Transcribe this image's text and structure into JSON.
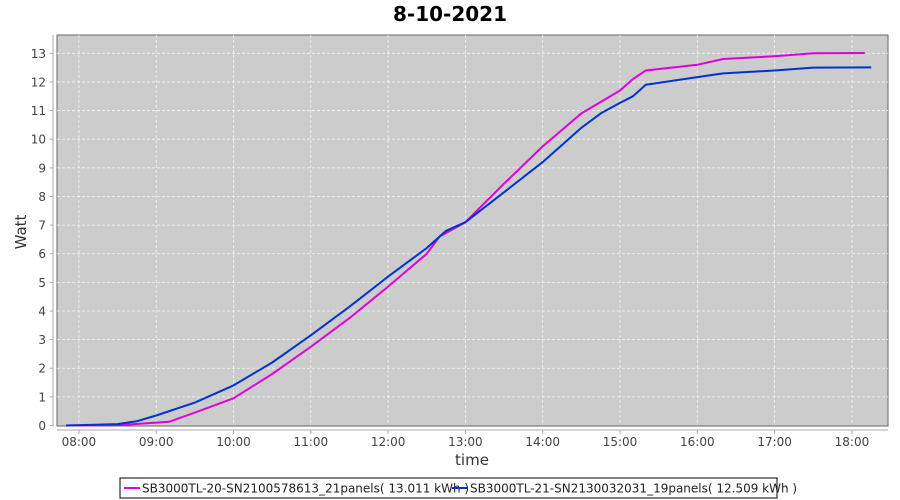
{
  "chart_data": {
    "type": "line",
    "title": "8-10-2021",
    "xlabel": "time",
    "ylabel": "Watt",
    "xlim": [
      "07:43",
      "18:28"
    ],
    "ylim": [
      0,
      13.64
    ],
    "x_ticks": [
      "08:00",
      "09:00",
      "10:00",
      "11:00",
      "12:00",
      "13:00",
      "14:00",
      "15:00",
      "16:00",
      "17:00",
      "18:00"
    ],
    "y_ticks": [
      0,
      1,
      2,
      3,
      4,
      5,
      6,
      7,
      8,
      9,
      10,
      11,
      12,
      13
    ],
    "grid": true,
    "legend_position": "bottom",
    "background": "#cccccc",
    "series": [
      {
        "name": "SB3000TL-20-SN2100578613_21panels( 13.011 kWh )",
        "color": "#dd00dd",
        "points": [
          [
            "07:50",
            0
          ],
          [
            "08:30",
            0.01
          ],
          [
            "09:00",
            0.1
          ],
          [
            "09:10",
            0.13
          ],
          [
            "09:30",
            0.45
          ],
          [
            "10:00",
            0.95
          ],
          [
            "10:30",
            1.8
          ],
          [
            "11:00",
            2.75
          ],
          [
            "11:30",
            3.75
          ],
          [
            "12:00",
            4.85
          ],
          [
            "12:30",
            6.0
          ],
          [
            "12:40",
            6.6
          ],
          [
            "12:50",
            6.85
          ],
          [
            "13:00",
            7.1
          ],
          [
            "13:30",
            8.45
          ],
          [
            "14:00",
            9.75
          ],
          [
            "14:30",
            10.9
          ],
          [
            "14:45",
            11.3
          ],
          [
            "15:00",
            11.7
          ],
          [
            "15:10",
            12.1
          ],
          [
            "15:20",
            12.4
          ],
          [
            "16:00",
            12.6
          ],
          [
            "16:20",
            12.8
          ],
          [
            "17:00",
            12.9
          ],
          [
            "17:30",
            13.0
          ],
          [
            "18:10",
            13.01
          ]
        ]
      },
      {
        "name": "SB3000TL-21-SN2130032031_19panels( 12.509 kWh )",
        "color": "#0033cc",
        "points": [
          [
            "07:50",
            0
          ],
          [
            "08:30",
            0.05
          ],
          [
            "08:45",
            0.15
          ],
          [
            "09:00",
            0.35
          ],
          [
            "09:30",
            0.8
          ],
          [
            "10:00",
            1.4
          ],
          [
            "10:30",
            2.2
          ],
          [
            "11:00",
            3.15
          ],
          [
            "11:30",
            4.15
          ],
          [
            "12:00",
            5.2
          ],
          [
            "12:30",
            6.2
          ],
          [
            "12:45",
            6.8
          ],
          [
            "13:00",
            7.1
          ],
          [
            "13:30",
            8.15
          ],
          [
            "14:00",
            9.2
          ],
          [
            "14:30",
            10.4
          ],
          [
            "14:45",
            10.9
          ],
          [
            "15:00",
            11.27
          ],
          [
            "15:10",
            11.5
          ],
          [
            "15:20",
            11.9
          ],
          [
            "16:00",
            12.17
          ],
          [
            "16:20",
            12.3
          ],
          [
            "17:00",
            12.4
          ],
          [
            "17:30",
            12.5
          ],
          [
            "18:15",
            12.51
          ]
        ]
      }
    ]
  }
}
